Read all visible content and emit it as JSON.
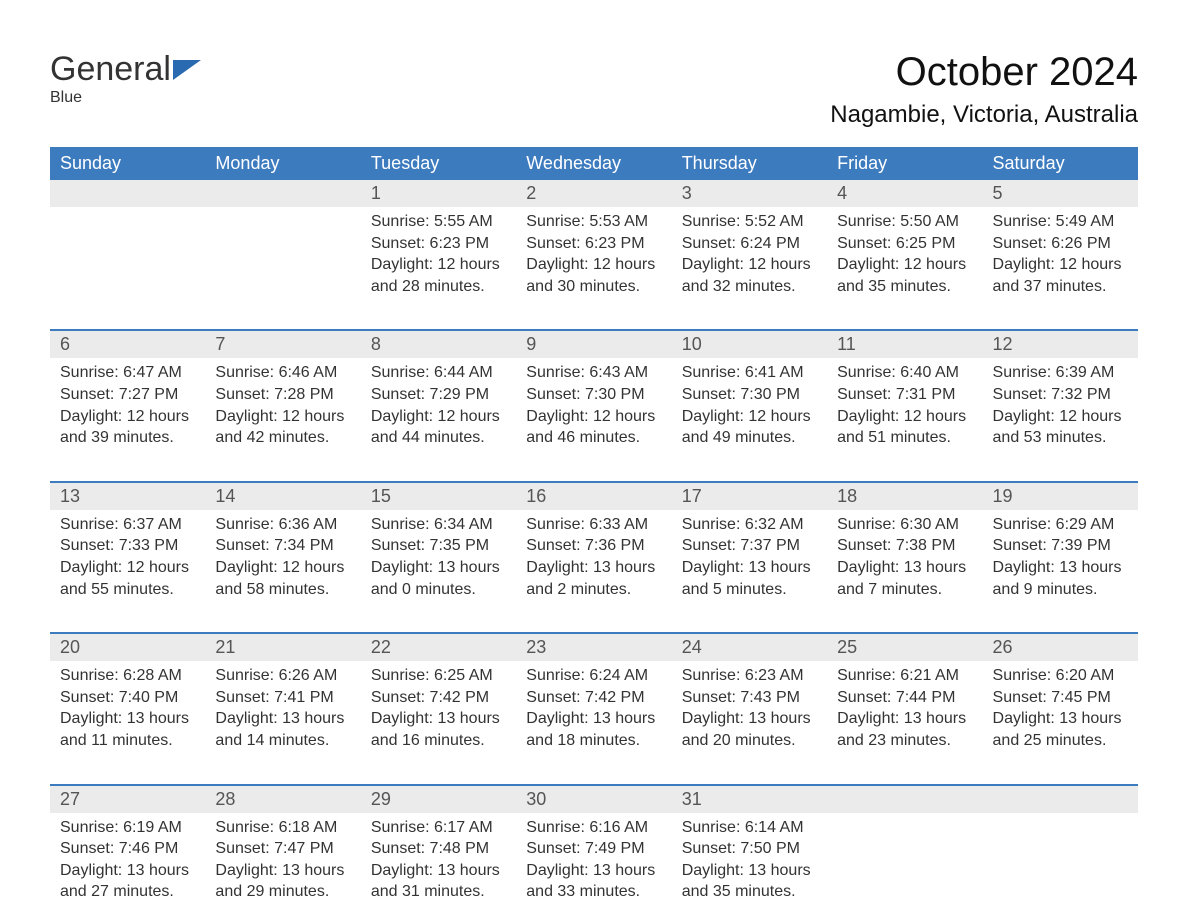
{
  "logo": {
    "text1": "General",
    "text2": "Blue"
  },
  "title": "October 2024",
  "location": "Nagambie, Victoria, Australia",
  "colors": {
    "header_bg": "#3d7bbf",
    "header_text": "#ffffff",
    "daynum_bg": "#ebebeb",
    "border": "#3d7bbf",
    "body_text": "#333333",
    "logo_blue": "#2a6ab0"
  },
  "day_headers": [
    "Sunday",
    "Monday",
    "Tuesday",
    "Wednesday",
    "Thursday",
    "Friday",
    "Saturday"
  ],
  "weeks": [
    {
      "nums": [
        "",
        "",
        "1",
        "2",
        "3",
        "4",
        "5"
      ],
      "cells": [
        null,
        null,
        {
          "sunrise": "Sunrise: 5:55 AM",
          "sunset": "Sunset: 6:23 PM",
          "daylight": "Daylight: 12 hours and 28 minutes."
        },
        {
          "sunrise": "Sunrise: 5:53 AM",
          "sunset": "Sunset: 6:23 PM",
          "daylight": "Daylight: 12 hours and 30 minutes."
        },
        {
          "sunrise": "Sunrise: 5:52 AM",
          "sunset": "Sunset: 6:24 PM",
          "daylight": "Daylight: 12 hours and 32 minutes."
        },
        {
          "sunrise": "Sunrise: 5:50 AM",
          "sunset": "Sunset: 6:25 PM",
          "daylight": "Daylight: 12 hours and 35 minutes."
        },
        {
          "sunrise": "Sunrise: 5:49 AM",
          "sunset": "Sunset: 6:26 PM",
          "daylight": "Daylight: 12 hours and 37 minutes."
        }
      ]
    },
    {
      "nums": [
        "6",
        "7",
        "8",
        "9",
        "10",
        "11",
        "12"
      ],
      "cells": [
        {
          "sunrise": "Sunrise: 6:47 AM",
          "sunset": "Sunset: 7:27 PM",
          "daylight": "Daylight: 12 hours and 39 minutes."
        },
        {
          "sunrise": "Sunrise: 6:46 AM",
          "sunset": "Sunset: 7:28 PM",
          "daylight": "Daylight: 12 hours and 42 minutes."
        },
        {
          "sunrise": "Sunrise: 6:44 AM",
          "sunset": "Sunset: 7:29 PM",
          "daylight": "Daylight: 12 hours and 44 minutes."
        },
        {
          "sunrise": "Sunrise: 6:43 AM",
          "sunset": "Sunset: 7:30 PM",
          "daylight": "Daylight: 12 hours and 46 minutes."
        },
        {
          "sunrise": "Sunrise: 6:41 AM",
          "sunset": "Sunset: 7:30 PM",
          "daylight": "Daylight: 12 hours and 49 minutes."
        },
        {
          "sunrise": "Sunrise: 6:40 AM",
          "sunset": "Sunset: 7:31 PM",
          "daylight": "Daylight: 12 hours and 51 minutes."
        },
        {
          "sunrise": "Sunrise: 6:39 AM",
          "sunset": "Sunset: 7:32 PM",
          "daylight": "Daylight: 12 hours and 53 minutes."
        }
      ]
    },
    {
      "nums": [
        "13",
        "14",
        "15",
        "16",
        "17",
        "18",
        "19"
      ],
      "cells": [
        {
          "sunrise": "Sunrise: 6:37 AM",
          "sunset": "Sunset: 7:33 PM",
          "daylight": "Daylight: 12 hours and 55 minutes."
        },
        {
          "sunrise": "Sunrise: 6:36 AM",
          "sunset": "Sunset: 7:34 PM",
          "daylight": "Daylight: 12 hours and 58 minutes."
        },
        {
          "sunrise": "Sunrise: 6:34 AM",
          "sunset": "Sunset: 7:35 PM",
          "daylight": "Daylight: 13 hours and 0 minutes."
        },
        {
          "sunrise": "Sunrise: 6:33 AM",
          "sunset": "Sunset: 7:36 PM",
          "daylight": "Daylight: 13 hours and 2 minutes."
        },
        {
          "sunrise": "Sunrise: 6:32 AM",
          "sunset": "Sunset: 7:37 PM",
          "daylight": "Daylight: 13 hours and 5 minutes."
        },
        {
          "sunrise": "Sunrise: 6:30 AM",
          "sunset": "Sunset: 7:38 PM",
          "daylight": "Daylight: 13 hours and 7 minutes."
        },
        {
          "sunrise": "Sunrise: 6:29 AM",
          "sunset": "Sunset: 7:39 PM",
          "daylight": "Daylight: 13 hours and 9 minutes."
        }
      ]
    },
    {
      "nums": [
        "20",
        "21",
        "22",
        "23",
        "24",
        "25",
        "26"
      ],
      "cells": [
        {
          "sunrise": "Sunrise: 6:28 AM",
          "sunset": "Sunset: 7:40 PM",
          "daylight": "Daylight: 13 hours and 11 minutes."
        },
        {
          "sunrise": "Sunrise: 6:26 AM",
          "sunset": "Sunset: 7:41 PM",
          "daylight": "Daylight: 13 hours and 14 minutes."
        },
        {
          "sunrise": "Sunrise: 6:25 AM",
          "sunset": "Sunset: 7:42 PM",
          "daylight": "Daylight: 13 hours and 16 minutes."
        },
        {
          "sunrise": "Sunrise: 6:24 AM",
          "sunset": "Sunset: 7:42 PM",
          "daylight": "Daylight: 13 hours and 18 minutes."
        },
        {
          "sunrise": "Sunrise: 6:23 AM",
          "sunset": "Sunset: 7:43 PM",
          "daylight": "Daylight: 13 hours and 20 minutes."
        },
        {
          "sunrise": "Sunrise: 6:21 AM",
          "sunset": "Sunset: 7:44 PM",
          "daylight": "Daylight: 13 hours and 23 minutes."
        },
        {
          "sunrise": "Sunrise: 6:20 AM",
          "sunset": "Sunset: 7:45 PM",
          "daylight": "Daylight: 13 hours and 25 minutes."
        }
      ]
    },
    {
      "nums": [
        "27",
        "28",
        "29",
        "30",
        "31",
        "",
        ""
      ],
      "cells": [
        {
          "sunrise": "Sunrise: 6:19 AM",
          "sunset": "Sunset: 7:46 PM",
          "daylight": "Daylight: 13 hours and 27 minutes."
        },
        {
          "sunrise": "Sunrise: 6:18 AM",
          "sunset": "Sunset: 7:47 PM",
          "daylight": "Daylight: 13 hours and 29 minutes."
        },
        {
          "sunrise": "Sunrise: 6:17 AM",
          "sunset": "Sunset: 7:48 PM",
          "daylight": "Daylight: 13 hours and 31 minutes."
        },
        {
          "sunrise": "Sunrise: 6:16 AM",
          "sunset": "Sunset: 7:49 PM",
          "daylight": "Daylight: 13 hours and 33 minutes."
        },
        {
          "sunrise": "Sunrise: 6:14 AM",
          "sunset": "Sunset: 7:50 PM",
          "daylight": "Daylight: 13 hours and 35 minutes."
        },
        null,
        null
      ]
    }
  ]
}
